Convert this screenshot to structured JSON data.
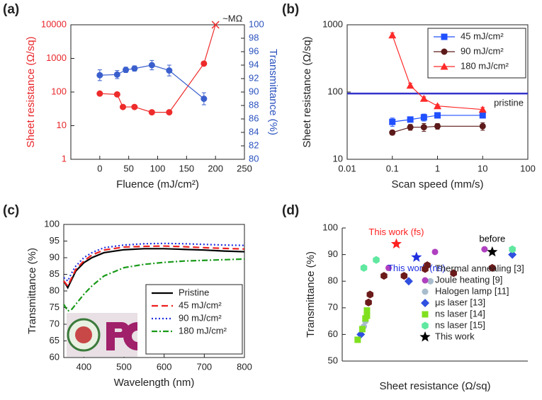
{
  "chart_data": [
    {
      "type": "line",
      "panel_label": "(a)",
      "xlabel": "Fluence (mJ/cm²)",
      "ylabel": "Sheet resistance (Ω/sq)",
      "y2label": "Transmittance (%)",
      "y_color": "#e8262a",
      "y2_color": "#2a52be",
      "xlim": [
        -50,
        250
      ],
      "xticks": [
        0,
        50,
        100,
        150,
        200,
        250
      ],
      "ylim": [
        1,
        10000
      ],
      "yticks": [
        1,
        10,
        100,
        1000,
        10000
      ],
      "ylog": true,
      "y2lim": [
        80,
        100
      ],
      "y2ticks": [
        80,
        82,
        84,
        86,
        88,
        90,
        92,
        94,
        96,
        98,
        100
      ],
      "axes_box": true,
      "series": [
        {
          "color": "#ee2b2b",
          "marker": [
            "circle",
            "circle",
            "circle",
            "circle",
            "circle",
            "circle",
            "circle",
            "x"
          ],
          "x": [
            0,
            30,
            40,
            60,
            90,
            120,
            180,
            200
          ],
          "values": [
            90,
            85,
            36,
            36,
            25,
            25,
            700,
            10000
          ]
        },
        {
          "color": "#3a5fcd",
          "marker": "circle",
          "axis": "y2",
          "x": [
            0,
            30,
            45,
            60,
            90,
            120,
            180
          ],
          "values": [
            92.5,
            92.6,
            93.3,
            93.5,
            94,
            93.2,
            89
          ],
          "errors": [
            0.8,
            0.6,
            0.4,
            0.4,
            0.7,
            0.8,
            0.9
          ]
        }
      ],
      "annotations": [
        {
          "text": "~MΩ"
        }
      ]
    },
    {
      "type": "line",
      "panel_label": "(b)",
      "xlabel": "Scan speed (mm/s)",
      "ylabel": "Sheet resistance (Ω/sq)",
      "xlim": [
        0.01,
        100
      ],
      "xticks": [
        0.01,
        0.1,
        1,
        10,
        100
      ],
      "xlog": true,
      "ylim": [
        10,
        1000
      ],
      "yticks": [
        10,
        100,
        1000
      ],
      "ylog": true,
      "axes_box": true,
      "series": [
        {
          "name": "45 mJ/cm²",
          "color": "#2050ff",
          "marker": "square",
          "x": [
            0.1,
            0.25,
            0.5,
            1,
            10
          ],
          "values": [
            36,
            39,
            42,
            45,
            45
          ],
          "errors": [
            5,
            3,
            5,
            3,
            3
          ]
        },
        {
          "name": "90 mJ/cm²",
          "color": "#5c1a1a",
          "marker": "circle",
          "x": [
            0.1,
            0.25,
            0.5,
            1,
            10
          ],
          "values": [
            25,
            30,
            30,
            31,
            31
          ],
          "errors": [
            2,
            3,
            4,
            3,
            4
          ]
        },
        {
          "name": "180 mJ/cm²",
          "color": "#ff2a2a",
          "marker": "triangle",
          "x": [
            0.1,
            0.25,
            0.5,
            1,
            10
          ],
          "values": [
            700,
            125,
            80,
            62,
            55
          ],
          "errors": [
            60,
            10,
            5,
            3,
            4
          ]
        }
      ],
      "hline": {
        "value": 95,
        "label": "pristine",
        "color": "#3333cc"
      },
      "legend": "upper right"
    },
    {
      "type": "line",
      "panel_label": "(c)",
      "xlabel": "Wavelength (nm)",
      "ylabel": "Transmittance (%)",
      "xlim": [
        350,
        800
      ],
      "xticks": [
        400,
        500,
        600,
        700,
        800
      ],
      "ylim": [
        60,
        100
      ],
      "yticks": [
        60,
        65,
        70,
        75,
        80,
        85,
        90,
        95,
        100
      ],
      "axes_box": true,
      "series": [
        {
          "name": "Pristine",
          "color": "#000000",
          "x": [
            350,
            360,
            370,
            380,
            400,
            420,
            450,
            500,
            550,
            600,
            650,
            700,
            750,
            800
          ],
          "values": [
            83,
            81,
            83.5,
            86,
            88.5,
            90,
            91.5,
            92.4,
            92.7,
            92.7,
            92.5,
            92.3,
            92,
            91.8
          ]
        },
        {
          "name": "45 mJ/cm²",
          "color": "#ee2020",
          "dash": "9 5",
          "x": [
            350,
            360,
            370,
            380,
            400,
            420,
            450,
            500,
            550,
            600,
            650,
            700,
            750,
            800
          ],
          "values": [
            83,
            81.5,
            84,
            86.5,
            89,
            90.8,
            92.3,
            93.2,
            93.4,
            93.5,
            93.3,
            93,
            92.8,
            92.6
          ]
        },
        {
          "name": "90 mJ/cm²",
          "color": "#2030e0",
          "dash": "2 3",
          "x": [
            350,
            360,
            370,
            380,
            400,
            420,
            450,
            500,
            550,
            600,
            650,
            700,
            750,
            800
          ],
          "values": [
            84,
            83,
            85.5,
            87.5,
            90,
            91.5,
            93,
            93.8,
            94.2,
            94.3,
            94.2,
            94,
            93.8,
            93.7
          ]
        },
        {
          "name": "180 mJ/cm²",
          "color": "#1a9a1a",
          "dash": "8 3 2 3",
          "x": [
            350,
            360,
            370,
            380,
            400,
            420,
            450,
            500,
            550,
            600,
            650,
            700,
            750,
            800
          ],
          "values": [
            76,
            74,
            74.5,
            76,
            79,
            81.5,
            84.5,
            87,
            88,
            88.6,
            89,
            89.2,
            89.4,
            89.6
          ]
        }
      ],
      "legend": "lower right"
    },
    {
      "type": "scatter",
      "panel_label": "(d)",
      "xlabel": "Sheet resistance (Ω/sq)",
      "ylabel": "Transmittance (%)",
      "xlim": [
        -10,
        110
      ],
      "ylim": [
        50,
        100
      ],
      "yticks": [
        50,
        60,
        70,
        80,
        90,
        100
      ],
      "axes_box": false,
      "series": [
        {
          "name": "Thermal annealing [3]",
          "color": "#6b1a1a",
          "marker": "hexagon",
          "x": [
            8,
            7,
            17,
            30,
            45,
            62,
            87
          ],
          "values": [
            75,
            72,
            82,
            82,
            86,
            83,
            85
          ]
        },
        {
          "name": "Joule heating [9]",
          "color": "#b040c0",
          "marker": "circle",
          "x": [
            20,
            50,
            82
          ],
          "values": [
            85,
            91,
            92
          ]
        },
        {
          "name": "Halogen lamp [11]",
          "color": "#a8bccc",
          "marker": "circle",
          "x": [
            47,
            5,
            4
          ],
          "values": [
            80,
            65,
            63
          ]
        },
        {
          "name": "μs laser [13]",
          "color": "#3050e0",
          "marker": "diamond",
          "x": [
            33,
            100,
            2
          ],
          "values": [
            80,
            90,
            60
          ]
        },
        {
          "name": "ns laser [14]",
          "color": "#80e020",
          "marker": "square",
          "x": [
            0,
            3,
            5,
            6,
            6
          ],
          "values": [
            58,
            62,
            66,
            69,
            67
          ]
        },
        {
          "name": "ns laser [15]",
          "color": "#60e8a0",
          "marker": "hexagon",
          "x": [
            12,
            4,
            100
          ],
          "values": [
            88,
            85,
            92
          ]
        },
        {
          "name": "This work",
          "color": "#000000",
          "marker": "star",
          "point_colors": [
            "#ff2020",
            "#2030e0",
            "#000000"
          ],
          "x": [
            25,
            38,
            87
          ],
          "values": [
            94,
            89,
            91
          ]
        }
      ],
      "annotations": [
        {
          "text": "This work (fs)",
          "color": "#ff2020"
        },
        {
          "text": "This work (ns)",
          "color": "#2030e0"
        },
        {
          "text": "before",
          "color": "#000000"
        }
      ],
      "legend": "lower right"
    }
  ]
}
